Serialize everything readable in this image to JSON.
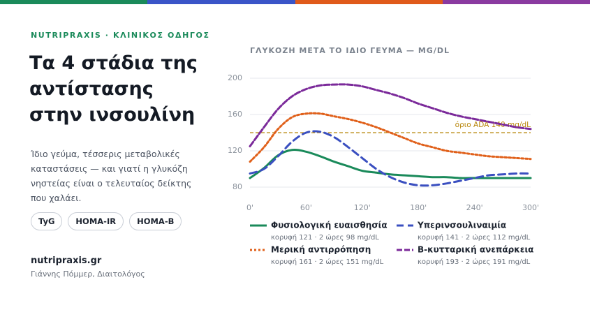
{
  "header": {
    "brand": "NUTRIPRAXIS · ΚΛΙΝΙΚΟΣ ΟΔΗΓΟΣ",
    "title": [
      "Τα 4 στάδια της",
      "αντίστασης",
      "στην ινσουλίνη"
    ]
  },
  "description": "Ίδιο γεύμα, τέσσερις μεταβολικές καταστάσεις — και γιατί η γλυκόζη νηστείας είναι ο τελευταίος δείκτης που χαλάει.",
  "tags": [
    "TyG",
    "HOMA-IR",
    "HOMA-B"
  ],
  "footer": {
    "site": "nutripraxis.gr",
    "author": "Γιάννης Πόμμερ, Διαιτολόγος"
  },
  "chart_data": {
    "type": "line",
    "title": "ΓΛΥΚΟΖΗ ΜΕΤΑ ΤΟ ΙΔΙΟ ΓΕΥΜΑ — MG/DL",
    "x": [
      0,
      15,
      30,
      45,
      60,
      75,
      90,
      105,
      120,
      135,
      150,
      165,
      180,
      195,
      210,
      225,
      240,
      255,
      270,
      285,
      300
    ],
    "xlim": [
      0,
      300
    ],
    "xticks": [
      {
        "value": 0,
        "label": "0'"
      },
      {
        "value": 60,
        "label": "60'"
      },
      {
        "value": 120,
        "label": "120'"
      },
      {
        "value": 180,
        "label": "180'"
      },
      {
        "value": 240,
        "label": "240'"
      },
      {
        "value": 300,
        "label": "300'"
      }
    ],
    "ylim": [
      80,
      200
    ],
    "yticks": [
      80,
      120,
      160,
      200
    ],
    "grid": true,
    "reference": {
      "value": 140,
      "label": "όριο ADA 140 mg/dL",
      "color": "#b8860b"
    },
    "series": [
      {
        "name": "Φυσιολογική ευαισθησία",
        "note": "κορυφή 121 · 2 ώρες 98 mg/dL",
        "color": "#1a8a5a",
        "dash": "none",
        "values": [
          90,
          101,
          115,
          121,
          119,
          114,
          108,
          103,
          98,
          96,
          94,
          93,
          92,
          91,
          91,
          90,
          90,
          90,
          90,
          90,
          90
        ]
      },
      {
        "name": "Υπερινσουλιναιμία",
        "note": "κορυφή 141 · 2 ώρες 112 mg/dL",
        "color": "#3a4fc0",
        "dash": "10 6",
        "values": [
          95,
          100,
          114,
          130,
          140,
          141,
          135,
          124,
          112,
          100,
          91,
          85,
          82,
          82,
          84,
          87,
          90,
          93,
          94,
          95,
          95
        ]
      },
      {
        "name": "Μερική αντιρρόπηση",
        "note": "κορυφή 161 · 2 ώρες 151 mg/dL",
        "color": "#e0601a",
        "dash": "3 3",
        "values": [
          108,
          124,
          144,
          157,
          161,
          161,
          158,
          155,
          151,
          146,
          140,
          134,
          128,
          124,
          120,
          118,
          116,
          114,
          113,
          112,
          111
        ]
      },
      {
        "name": "Β-κυτταρική ανεπάρκεια",
        "note": "κορυφή 193 · 2 ώρες 191 mg/dL",
        "color": "#7b2a9a",
        "dash": "8 3",
        "values": [
          125,
          146,
          166,
          180,
          188,
          192,
          193,
          193,
          191,
          187,
          183,
          178,
          172,
          167,
          162,
          158,
          155,
          152,
          149,
          146,
          144
        ]
      }
    ]
  }
}
